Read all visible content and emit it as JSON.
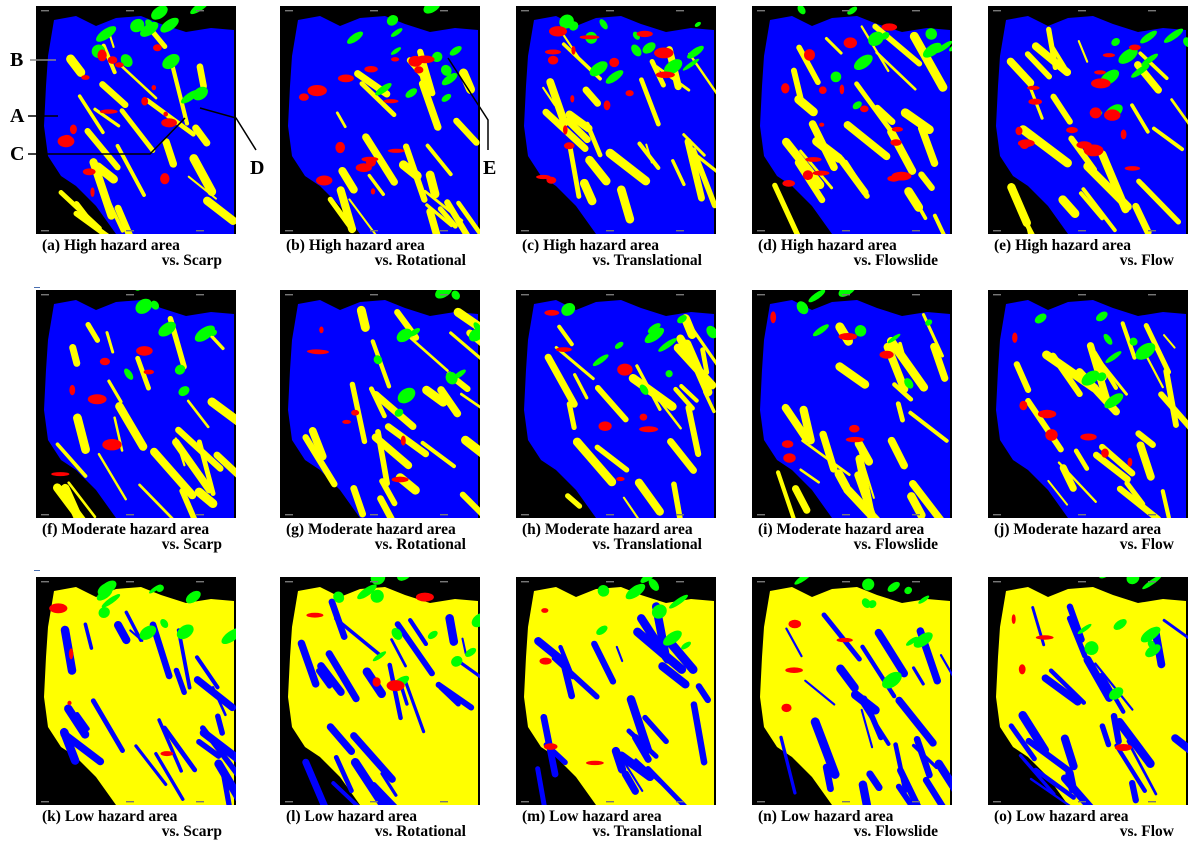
{
  "colors": {
    "background": "#000000",
    "blue": "#0000ff",
    "yellow": "#ffff00",
    "red": "#ff0000",
    "green": "#00ff00"
  },
  "annotations": [
    "A",
    "B",
    "C",
    "D",
    "E"
  ],
  "panels": [
    {
      "caption1": "(a) High hazard area",
      "caption2": "vs. Scarp",
      "base": "#0000ff",
      "zone": "#ffff00",
      "hit": "#ff0000",
      "landslide": "#00ff00"
    },
    {
      "caption1": "(b) High hazard area",
      "caption2": "vs. Rotational",
      "base": "#0000ff",
      "zone": "#ffff00",
      "hit": "#ff0000",
      "landslide": "#00ff00"
    },
    {
      "caption1": "(c) High hazard area",
      "caption2": "vs. Translational",
      "base": "#0000ff",
      "zone": "#ffff00",
      "hit": "#ff0000",
      "landslide": "#00ff00"
    },
    {
      "caption1": "(d) High hazard area",
      "caption2": "vs. Flowslide",
      "base": "#0000ff",
      "zone": "#ffff00",
      "hit": "#ff0000",
      "landslide": "#00ff00"
    },
    {
      "caption1": "(e) High hazard area",
      "caption2": "vs. Flow",
      "base": "#0000ff",
      "zone": "#ffff00",
      "hit": "#ff0000",
      "landslide": "#00ff00"
    },
    {
      "caption1": "(f) Moderate hazard area",
      "caption2": "vs. Scarp",
      "base": "#0000ff",
      "zone": "#ffff00",
      "hit": "#ff0000",
      "landslide": "#00ff00"
    },
    {
      "caption1": "(g) Moderate hazard area",
      "caption2": "vs. Rotational",
      "base": "#0000ff",
      "zone": "#ffff00",
      "hit": "#ff0000",
      "landslide": "#00ff00"
    },
    {
      "caption1": "(h) Moderate hazard area",
      "caption2": "vs. Translational",
      "base": "#0000ff",
      "zone": "#ffff00",
      "hit": "#ff0000",
      "landslide": "#00ff00"
    },
    {
      "caption1": "(i) Moderate hazard area",
      "caption2": "vs. Flowslide",
      "base": "#0000ff",
      "zone": "#ffff00",
      "hit": "#ff0000",
      "landslide": "#00ff00"
    },
    {
      "caption1": "(j) Moderate hazard area",
      "caption2": "vs. Flow",
      "base": "#0000ff",
      "zone": "#ffff00",
      "hit": "#ff0000",
      "landslide": "#00ff00"
    },
    {
      "caption1": "(k) Low hazard area",
      "caption2": "vs. Scarp",
      "base": "#ffff00",
      "zone": "#0000ff",
      "hit": "#ff0000",
      "landslide": "#00ff00"
    },
    {
      "caption1": "(l) Low hazard area",
      "caption2": "vs. Rotational",
      "base": "#ffff00",
      "zone": "#0000ff",
      "hit": "#ff0000",
      "landslide": "#00ff00"
    },
    {
      "caption1": "(m) Low hazard area",
      "caption2": "vs. Translational",
      "base": "#ffff00",
      "zone": "#0000ff",
      "hit": "#ff0000",
      "landslide": "#00ff00"
    },
    {
      "caption1": "(n) Low hazard area",
      "caption2": "vs. Flowslide",
      "base": "#ffff00",
      "zone": "#0000ff",
      "hit": "#ff0000",
      "landslide": "#00ff00"
    },
    {
      "caption1": "(o) Low hazard area",
      "caption2": "vs. Flow",
      "base": "#ffff00",
      "zone": "#0000ff",
      "hit": "#ff0000",
      "landslide": "#00ff00"
    }
  ]
}
